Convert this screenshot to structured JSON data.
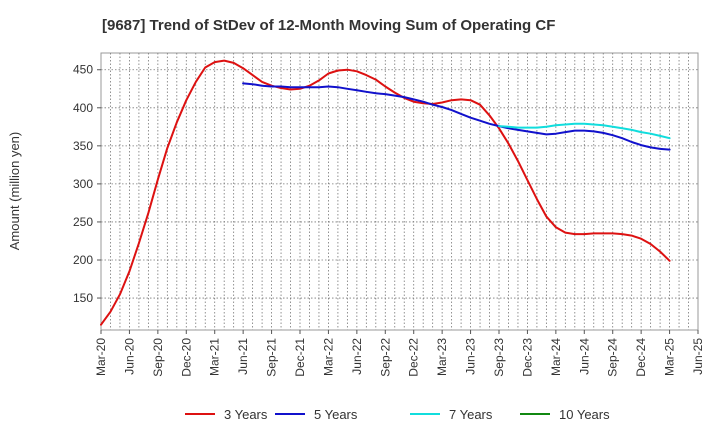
{
  "chart_data": {
    "type": "line",
    "title": "[9687]  Trend of StDev of 12-Month Moving Sum of Operating CF",
    "ylabel": "Amount (million yen)",
    "xlabel": "",
    "ylim": [
      108,
      472
    ],
    "yticks": [
      150,
      200,
      250,
      300,
      350,
      400,
      450
    ],
    "x_tick_labels": [
      "Mar-20",
      "Jun-20",
      "Sep-20",
      "Dec-20",
      "Mar-21",
      "Jun-21",
      "Sep-21",
      "Dec-21",
      "Mar-22",
      "Jun-22",
      "Sep-22",
      "Dec-22",
      "Mar-23",
      "Jun-23",
      "Sep-23",
      "Dec-23",
      "Mar-24",
      "Jun-24",
      "Sep-24",
      "Dec-24",
      "Mar-25",
      "Jun-25"
    ],
    "grid": true,
    "legend_position": "bottom",
    "series": [
      {
        "name": "3 Years",
        "color": "#dd1111",
        "x": [
          "Mar-20",
          "Apr-20",
          "May-20",
          "Jun-20",
          "Jul-20",
          "Aug-20",
          "Sep-20",
          "Oct-20",
          "Nov-20",
          "Dec-20",
          "Jan-21",
          "Feb-21",
          "Mar-21",
          "Apr-21",
          "May-21",
          "Jun-21",
          "Jul-21",
          "Aug-21",
          "Sep-21",
          "Oct-21",
          "Nov-21",
          "Dec-21",
          "Jan-22",
          "Feb-22",
          "Mar-22",
          "Apr-22",
          "May-22",
          "Jun-22",
          "Jul-22",
          "Aug-22",
          "Sep-22",
          "Oct-22",
          "Nov-22",
          "Dec-22",
          "Jan-23",
          "Feb-23",
          "Mar-23",
          "Apr-23",
          "May-23",
          "Jun-23",
          "Jul-23",
          "Aug-23",
          "Sep-23",
          "Oct-23",
          "Nov-23",
          "Dec-23",
          "Jan-24",
          "Feb-24",
          "Mar-24",
          "Apr-24",
          "May-24",
          "Jun-24",
          "Jul-24",
          "Aug-24",
          "Sep-24",
          "Oct-24",
          "Nov-24",
          "Dec-24",
          "Jan-25",
          "Feb-25",
          "Mar-25"
        ],
        "values": [
          115,
          132,
          155,
          185,
          222,
          262,
          306,
          347,
          381,
          410,
          434,
          453,
          460,
          462,
          459,
          452,
          443,
          434,
          429,
          426,
          424,
          425,
          429,
          436,
          445,
          449,
          450,
          448,
          443,
          437,
          428,
          420,
          413,
          408,
          406,
          405,
          407,
          410,
          411,
          410,
          404,
          390,
          373,
          353,
          330,
          305,
          280,
          257,
          243,
          236,
          234,
          234,
          235,
          235,
          235,
          234,
          232,
          228,
          221,
          211,
          199
        ]
      },
      {
        "name": "5 Years",
        "color": "#1111cc",
        "x": [
          "Jun-21",
          "Jul-21",
          "Aug-21",
          "Sep-21",
          "Oct-21",
          "Nov-21",
          "Dec-21",
          "Jan-22",
          "Feb-22",
          "Mar-22",
          "Apr-22",
          "May-22",
          "Jun-22",
          "Jul-22",
          "Aug-22",
          "Sep-22",
          "Oct-22",
          "Nov-22",
          "Dec-22",
          "Jan-23",
          "Feb-23",
          "Mar-23",
          "Apr-23",
          "May-23",
          "Jun-23",
          "Jul-23",
          "Aug-23",
          "Sep-23",
          "Oct-23",
          "Nov-23",
          "Dec-23",
          "Jan-24",
          "Feb-24",
          "Mar-24",
          "Apr-24",
          "May-24",
          "Jun-24",
          "Jul-24",
          "Aug-24",
          "Sep-24",
          "Oct-24",
          "Nov-24",
          "Dec-24",
          "Jan-25",
          "Feb-25",
          "Mar-25"
        ],
        "values": [
          432,
          431,
          429,
          428,
          428,
          427,
          427,
          427,
          427,
          428,
          427,
          425,
          423,
          421,
          419,
          418,
          416,
          414,
          411,
          408,
          404,
          401,
          397,
          392,
          387,
          383,
          379,
          376,
          373,
          371,
          369,
          367,
          365,
          366,
          368,
          370,
          370,
          369,
          367,
          364,
          360,
          355,
          351,
          348,
          346,
          345
        ]
      },
      {
        "name": "7 Years",
        "color": "#11dddd",
        "x": [
          "Sep-23",
          "Oct-23",
          "Nov-23",
          "Dec-23",
          "Jan-24",
          "Feb-24",
          "Mar-24",
          "Apr-24",
          "May-24",
          "Jun-24",
          "Jul-24",
          "Aug-24",
          "Sep-24",
          "Oct-24",
          "Nov-24",
          "Dec-24",
          "Jan-25",
          "Feb-25",
          "Mar-25"
        ],
        "values": [
          376,
          375,
          374,
          374,
          374,
          375,
          377,
          378,
          379,
          379,
          378,
          377,
          375,
          373,
          371,
          368,
          366,
          363,
          360
        ]
      },
      {
        "name": "10 Years",
        "color": "#118811",
        "x": [],
        "values": []
      }
    ]
  }
}
